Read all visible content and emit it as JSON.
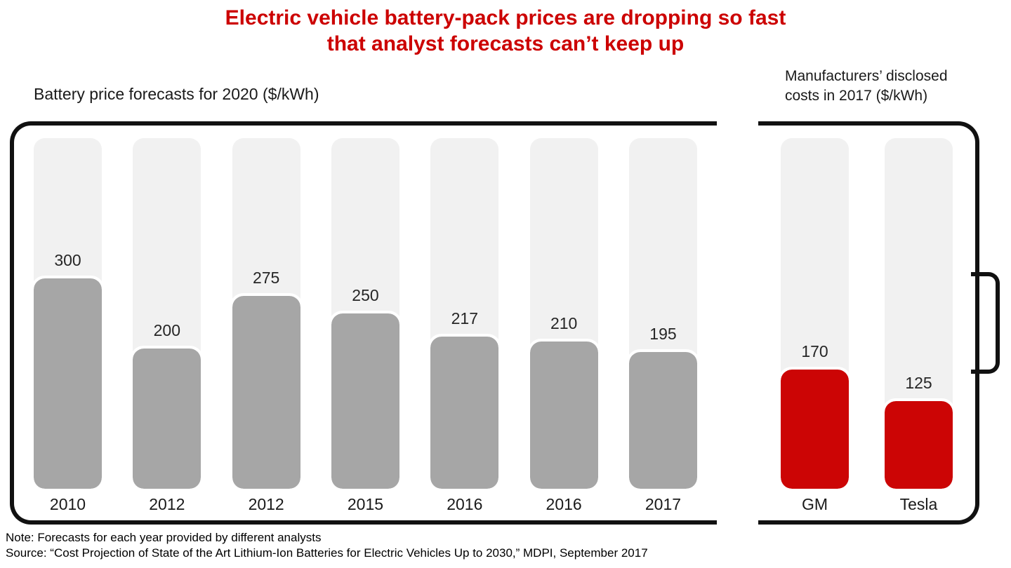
{
  "title": {
    "line1": "Electric vehicle battery-pack prices are dropping so fast",
    "line2": "that analyst forecasts can’t keep up"
  },
  "left_chart": {
    "heading": "Battery price forecasts for 2020 ($/kWh)"
  },
  "right_chart": {
    "heading": "Manufacturers’ disclosed costs in 2017 ($/kWh)"
  },
  "footnotes": {
    "note": "Note: Forecasts for each year provided by different analysts",
    "source": "Source: “Cost Projection of State of the Art Lithium-Ion Batteries for Electric Vehicles Up to 2030,” MDPI, September 2017"
  },
  "colors": {
    "title_red": "#cc0000",
    "bar_red": "#cc0505",
    "bar_gray": "#a6a6a6",
    "track_gray": "#f1f1f1",
    "battery_outline": "#111111"
  },
  "chart_data": [
    {
      "type": "bar",
      "title": "Battery price forecasts for 2020 ($/kWh)",
      "categories": [
        "2010",
        "2012",
        "2012",
        "2015",
        "2016",
        "2016",
        "2017"
      ],
      "values": [
        300,
        200,
        275,
        250,
        217,
        210,
        195
      ],
      "ylim": [
        0,
        500
      ],
      "grid": false,
      "legend": false,
      "bar_color": "#a6a6a6",
      "track_color": "#f1f1f1",
      "annotation_style": "value label above each bar, category label below"
    },
    {
      "type": "bar",
      "title": "Manufacturers’ disclosed costs in 2017 ($/kWh)",
      "categories": [
        "GM",
        "Tesla"
      ],
      "values": [
        170,
        125
      ],
      "ylim": [
        0,
        500
      ],
      "grid": false,
      "legend": false,
      "bar_color": "#cc0505",
      "track_color": "#f1f1f1",
      "annotation_style": "value label above each bar, category label below"
    }
  ]
}
